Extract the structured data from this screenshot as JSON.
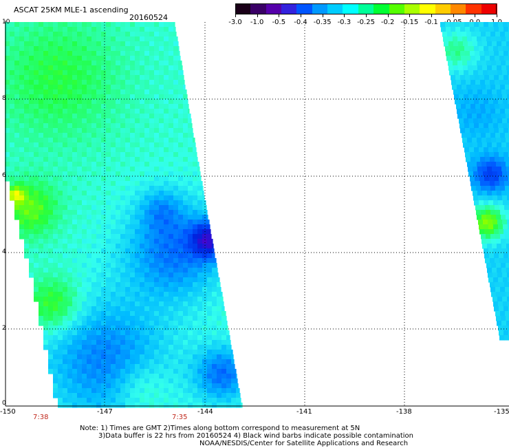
{
  "header": {
    "title": "ASCAT 25KM MLE-1 ascending",
    "date": "20160524"
  },
  "colorbar": {
    "labels": [
      "-3.0",
      "-1.0",
      "-0.5",
      "-0.4",
      "-0.35",
      "-0.3",
      "-0.25",
      "-0.2",
      "-0.15",
      "-0.1",
      "-0.05",
      "0.0",
      "1.0"
    ],
    "colors": [
      "#1a0018",
      "#3a0066",
      "#5500aa",
      "#3322dd",
      "#0055ff",
      "#0099ff",
      "#00ccff",
      "#00ffff",
      "#00ff99",
      "#00ff33",
      "#55ff00",
      "#aaff00",
      "#ffff00",
      "#ffcc00",
      "#ff8800",
      "#ff3300",
      "#ee0000"
    ]
  },
  "axes": {
    "x_ticks": [
      "-150",
      "-147",
      "-144",
      "-141",
      "-138",
      "-135"
    ],
    "y_ticks": [
      "10",
      "8",
      "6",
      "4",
      "2",
      "0"
    ]
  },
  "time_labels": [
    "7:38",
    "7:35"
  ],
  "notes": {
    "line1": "Note: 1) Times are GMT 2)Times along bottom correspond to measurement at 5N",
    "line2": "3)Data buffer is 22 hrs from 20160524 4) Black wind barbs indicate possible contamination",
    "line3": "NOAA/NESDIS/Center for Satellite Applications and Research"
  },
  "palette": {
    "cyan": "#33ffee",
    "light_blue": "#00bbff",
    "blue": "#0055ff",
    "deep_blue": "#0022dd",
    "violet": "#5500cc",
    "green": "#22ff44",
    "lime": "#88ff00",
    "yellow": "#ffff00",
    "orange": "#ff8800"
  }
}
